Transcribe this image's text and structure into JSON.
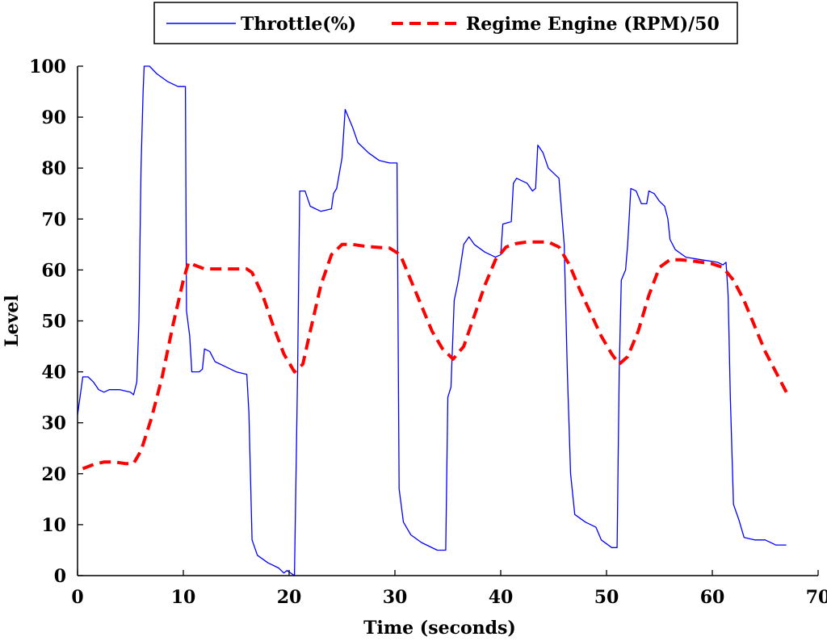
{
  "chart_data": {
    "type": "line",
    "title": "",
    "xlabel": "Time (seconds)",
    "ylabel": "Level",
    "xlim": [
      0,
      70
    ],
    "ylim": [
      0,
      100
    ],
    "xticks": [
      0,
      10,
      20,
      30,
      40,
      50,
      60,
      70
    ],
    "yticks": [
      0,
      10,
      20,
      30,
      40,
      50,
      60,
      70,
      80,
      90,
      100
    ],
    "xtick_labels": [
      "0",
      "10",
      "20",
      "30",
      "40",
      "50",
      "60",
      "70"
    ],
    "ytick_labels": [
      "0",
      "10",
      "20",
      "30",
      "40",
      "50",
      "60",
      "70",
      "80",
      "90",
      "100"
    ],
    "grid": false,
    "legend_position": "top",
    "series": [
      {
        "name": "Throttle(%)",
        "color": "#0000ff",
        "style": "solid",
        "points": [
          [
            0.0,
            31.5
          ],
          [
            0.3,
            36
          ],
          [
            0.5,
            39
          ],
          [
            1.0,
            39
          ],
          [
            1.5,
            38
          ],
          [
            2.0,
            36.5
          ],
          [
            2.5,
            36
          ],
          [
            3.0,
            36.5
          ],
          [
            4.0,
            36.5
          ],
          [
            5.0,
            36
          ],
          [
            5.3,
            35.5
          ],
          [
            5.6,
            38
          ],
          [
            5.8,
            50
          ],
          [
            6.0,
            80
          ],
          [
            6.2,
            95
          ],
          [
            6.3,
            100
          ],
          [
            6.8,
            100
          ],
          [
            7.5,
            98.5
          ],
          [
            8.5,
            97
          ],
          [
            9.5,
            96
          ],
          [
            10.2,
            96
          ],
          [
            10.3,
            52
          ],
          [
            10.6,
            47
          ],
          [
            10.8,
            40
          ],
          [
            11.5,
            40
          ],
          [
            11.8,
            40.5
          ],
          [
            12.0,
            44.5
          ],
          [
            12.5,
            44
          ],
          [
            13.0,
            42
          ],
          [
            14.0,
            41
          ],
          [
            15.0,
            40
          ],
          [
            16.0,
            39.5
          ],
          [
            16.2,
            32
          ],
          [
            16.5,
            7
          ],
          [
            17.0,
            4
          ],
          [
            18.0,
            2.5
          ],
          [
            19.0,
            1.5
          ],
          [
            19.5,
            0.5
          ],
          [
            19.8,
            1
          ],
          [
            20.5,
            0
          ],
          [
            20.8,
            40
          ],
          [
            21.0,
            75.5
          ],
          [
            21.5,
            75.5
          ],
          [
            22.0,
            72.5
          ],
          [
            23.0,
            71.5
          ],
          [
            24.0,
            72
          ],
          [
            24.2,
            75
          ],
          [
            24.5,
            76
          ],
          [
            25.0,
            82
          ],
          [
            25.3,
            91.5
          ],
          [
            26.0,
            88
          ],
          [
            26.5,
            85
          ],
          [
            27.5,
            83
          ],
          [
            28.5,
            81.5
          ],
          [
            29.5,
            81
          ],
          [
            30.2,
            81
          ],
          [
            30.4,
            17
          ],
          [
            30.8,
            10.5
          ],
          [
            31.5,
            8
          ],
          [
            32.5,
            6.5
          ],
          [
            34.0,
            5
          ],
          [
            34.8,
            5
          ],
          [
            35.0,
            35
          ],
          [
            35.3,
            37
          ],
          [
            35.6,
            54
          ],
          [
            36.0,
            58
          ],
          [
            36.5,
            65
          ],
          [
            37.0,
            66.5
          ],
          [
            37.5,
            65
          ],
          [
            38.5,
            63.5
          ],
          [
            39.5,
            62.5
          ],
          [
            40.0,
            63
          ],
          [
            40.2,
            69
          ],
          [
            41.0,
            69.5
          ],
          [
            41.2,
            77
          ],
          [
            41.5,
            78
          ],
          [
            42.5,
            77
          ],
          [
            43.0,
            75.5
          ],
          [
            43.3,
            76
          ],
          [
            43.5,
            84.5
          ],
          [
            44.0,
            83
          ],
          [
            44.5,
            80
          ],
          [
            45.5,
            78
          ],
          [
            46.0,
            65
          ],
          [
            46.3,
            40
          ],
          [
            46.6,
            20
          ],
          [
            47.0,
            12
          ],
          [
            48.0,
            10.5
          ],
          [
            49.0,
            9.5
          ],
          [
            49.5,
            7
          ],
          [
            50.5,
            5.5
          ],
          [
            51.0,
            5.5
          ],
          [
            51.2,
            40
          ],
          [
            51.4,
            58
          ],
          [
            51.8,
            60
          ],
          [
            52.0,
            65
          ],
          [
            52.3,
            76
          ],
          [
            52.8,
            75.5
          ],
          [
            53.3,
            73
          ],
          [
            53.8,
            73
          ],
          [
            54.0,
            75.5
          ],
          [
            54.5,
            75
          ],
          [
            55.0,
            73.5
          ],
          [
            55.5,
            72.5
          ],
          [
            55.8,
            70
          ],
          [
            56.0,
            66
          ],
          [
            56.5,
            64
          ],
          [
            57.5,
            62.5
          ],
          [
            59.0,
            62
          ],
          [
            60.5,
            61.5
          ],
          [
            61.0,
            61
          ],
          [
            61.3,
            61.5
          ],
          [
            61.5,
            55
          ],
          [
            61.7,
            35
          ],
          [
            62.0,
            14
          ],
          [
            62.5,
            11
          ],
          [
            63.0,
            7.5
          ],
          [
            64.0,
            7
          ],
          [
            65.0,
            7
          ],
          [
            66.0,
            6
          ],
          [
            67.0,
            6
          ]
        ]
      },
      {
        "name": "Regime Engine (RPM)/50",
        "color": "#ff0000",
        "style": "dashed",
        "points": [
          [
            0.5,
            21
          ],
          [
            1.5,
            21.8
          ],
          [
            2.5,
            22.3
          ],
          [
            3.5,
            22.3
          ],
          [
            4.5,
            22
          ],
          [
            5.3,
            22
          ],
          [
            6.0,
            24.5
          ],
          [
            7.0,
            31
          ],
          [
            8.0,
            39
          ],
          [
            9.0,
            49
          ],
          [
            10.0,
            58
          ],
          [
            10.5,
            61.5
          ],
          [
            11.0,
            61
          ],
          [
            12.0,
            60.2
          ],
          [
            13.0,
            60.2
          ],
          [
            14.0,
            60.2
          ],
          [
            15.0,
            60.2
          ],
          [
            16.0,
            60.2
          ],
          [
            16.5,
            59.5
          ],
          [
            17.5,
            55
          ],
          [
            18.5,
            49
          ],
          [
            19.5,
            43.5
          ],
          [
            20.5,
            40
          ],
          [
            21.3,
            41.5
          ],
          [
            22.0,
            48
          ],
          [
            23.0,
            57
          ],
          [
            24.0,
            63
          ],
          [
            25.0,
            65
          ],
          [
            26.0,
            65
          ],
          [
            27.0,
            64.7
          ],
          [
            28.0,
            64.5
          ],
          [
            29.5,
            64.3
          ],
          [
            30.5,
            63
          ],
          [
            31.5,
            58
          ],
          [
            32.5,
            53
          ],
          [
            33.5,
            48
          ],
          [
            34.5,
            44.5
          ],
          [
            35.5,
            42.5
          ],
          [
            36.5,
            45
          ],
          [
            37.5,
            51
          ],
          [
            38.5,
            57
          ],
          [
            39.5,
            62
          ],
          [
            40.5,
            64.5
          ],
          [
            41.5,
            65.2
          ],
          [
            42.5,
            65.5
          ],
          [
            43.5,
            65.5
          ],
          [
            44.5,
            65.5
          ],
          [
            45.5,
            64.5
          ],
          [
            46.5,
            61
          ],
          [
            47.5,
            56
          ],
          [
            48.5,
            51.5
          ],
          [
            49.5,
            47
          ],
          [
            50.5,
            43.5
          ],
          [
            51.2,
            41.5
          ],
          [
            52.0,
            43
          ],
          [
            53.0,
            48
          ],
          [
            54.0,
            55
          ],
          [
            55.0,
            60.5
          ],
          [
            56.0,
            62
          ],
          [
            57.0,
            62
          ],
          [
            58.0,
            61.8
          ],
          [
            59.0,
            61.5
          ],
          [
            60.0,
            61.2
          ],
          [
            61.0,
            60.5
          ],
          [
            62.0,
            58
          ],
          [
            63.0,
            54
          ],
          [
            64.0,
            49
          ],
          [
            65.0,
            44
          ],
          [
            66.0,
            40
          ],
          [
            67.0,
            36
          ]
        ]
      }
    ]
  }
}
